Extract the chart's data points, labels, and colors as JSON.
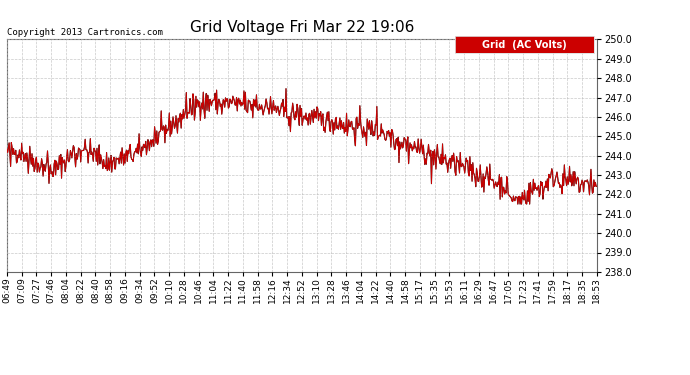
{
  "title": "Grid Voltage Fri Mar 22 19:06",
  "copyright": "Copyright 2013 Cartronics.com",
  "legend_label": "Grid  (AC Volts)",
  "ylim": [
    238.0,
    250.0
  ],
  "yticks": [
    238.0,
    239.0,
    240.0,
    241.0,
    242.0,
    243.0,
    244.0,
    245.0,
    246.0,
    247.0,
    248.0,
    249.0,
    250.0
  ],
  "xtick_labels": [
    "06:49",
    "07:09",
    "07:27",
    "07:46",
    "08:04",
    "08:22",
    "08:40",
    "08:58",
    "09:16",
    "09:34",
    "09:52",
    "10:10",
    "10:28",
    "10:46",
    "11:04",
    "11:22",
    "11:40",
    "11:58",
    "12:16",
    "12:34",
    "12:52",
    "13:10",
    "13:28",
    "13:46",
    "14:04",
    "14:22",
    "14:40",
    "14:58",
    "15:17",
    "15:35",
    "15:53",
    "16:11",
    "16:29",
    "16:47",
    "17:05",
    "17:23",
    "17:41",
    "17:59",
    "18:17",
    "18:35",
    "18:53"
  ],
  "line_color": "#cc0000",
  "line_color2": "#222222",
  "background_color": "#ffffff",
  "plot_bg_color": "#ffffff",
  "grid_color": "#bbbbbb",
  "title_fontsize": 11,
  "copyright_fontsize": 6.5,
  "tick_fontsize": 7,
  "legend_bg": "#cc0000",
  "legend_fg": "#ffffff",
  "legend_fontsize": 7
}
